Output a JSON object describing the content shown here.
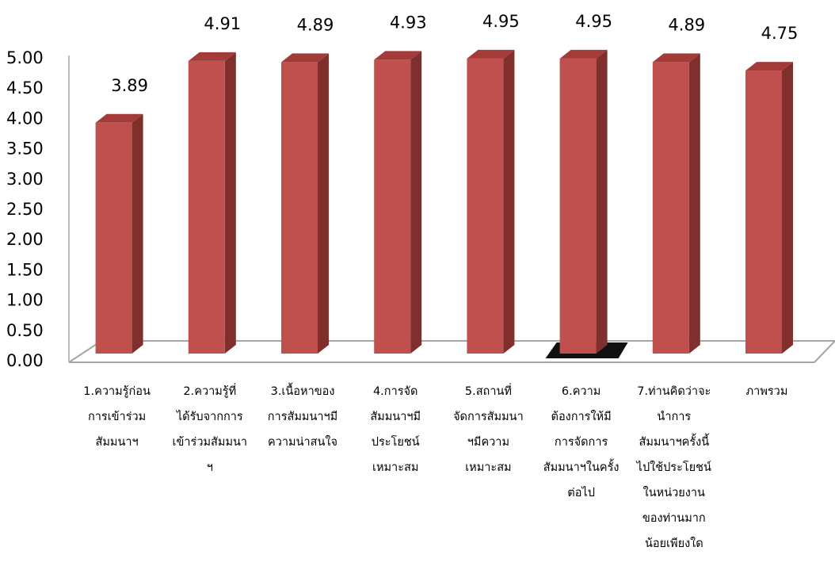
{
  "chart_data": {
    "type": "bar",
    "title": "",
    "xlabel": "",
    "ylabel": "",
    "ylim": [
      0,
      5
    ],
    "y_ticks": [
      "0.00",
      "0.50",
      "1.00",
      "1.50",
      "2.00",
      "2.50",
      "3.00",
      "3.50",
      "4.00",
      "4.50",
      "5.00"
    ],
    "categories": [
      [
        "1.ความรู้ก่อน",
        "การเข้าร่วม",
        "สัมมนาฯ"
      ],
      [
        "2.ความรู้ที่",
        "ได้รับจากการ",
        "เข้าร่วมสัมมนา",
        "ฯ"
      ],
      [
        "3.เนื้อหาของ",
        "การสัมมนาฯมี",
        "ความน่าสนใจ"
      ],
      [
        "4.การจัด",
        "สัมมนาฯมี",
        "ประโยชน์",
        "เหมาะสม"
      ],
      [
        "5.สถานที่",
        "จัดการสัมมนา",
        "ฯมีความ",
        "เหมาะสม"
      ],
      [
        "6.ความ",
        "ต้องการให้มี",
        "การจัดการ",
        "สัมมนาฯในครั้ง",
        "ต่อไป"
      ],
      [
        "7.ท่านคิดว่าจะ",
        "นำการ",
        "สัมมนาฯครั้งนี้",
        "ไปใช้ประโยชน์",
        "ในหน่วยงาน",
        "ของท่านมาก",
        "น้อยเพียงใด"
      ],
      [
        "ภาพรวม"
      ]
    ],
    "values": [
      3.89,
      4.91,
      4.89,
      4.93,
      4.95,
      4.95,
      4.89,
      4.75
    ],
    "value_labels": [
      "3.89",
      "4.91",
      "4.89",
      "4.93",
      "4.95",
      "4.95",
      "4.89",
      "4.75"
    ],
    "grid": false,
    "legend": "none",
    "colors": {
      "bar_front": "#C0504D",
      "bar_side": "#7F2F2C",
      "bar_top": "#A33B38",
      "axis": "#A6A6A6"
    }
  }
}
